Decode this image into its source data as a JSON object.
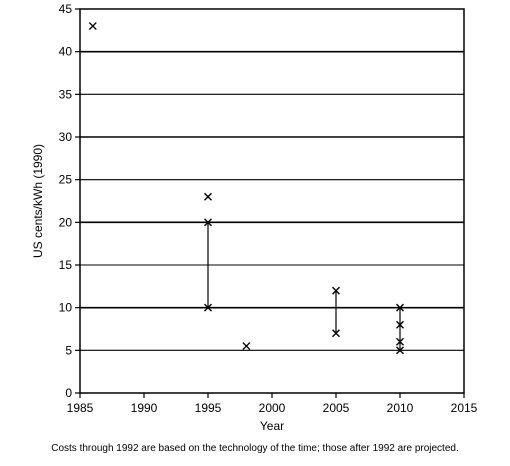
{
  "chart_data": {
    "type": "scatter",
    "xlabel": "Year",
    "ylabel": "US cents/kWh (1990)",
    "xlim": [
      1985,
      2015
    ],
    "ylim": [
      0,
      45
    ],
    "xticks": [
      1985,
      1990,
      1995,
      2000,
      2005,
      2010,
      2015
    ],
    "yticks": [
      0,
      5,
      10,
      15,
      20,
      25,
      30,
      35,
      40,
      45
    ],
    "grid": "horizontal",
    "points": [
      {
        "x": 1986,
        "y": 43
      },
      {
        "x": 1995,
        "y": 23
      },
      {
        "x": 1995,
        "y": 20
      },
      {
        "x": 1995,
        "y": 10
      },
      {
        "x": 1998,
        "y": 5.5
      },
      {
        "x": 2005,
        "y": 12
      },
      {
        "x": 2005,
        "y": 7
      },
      {
        "x": 2010,
        "y": 10
      },
      {
        "x": 2010,
        "y": 8
      },
      {
        "x": 2010,
        "y": 6
      },
      {
        "x": 2010,
        "y": 5
      }
    ],
    "ranges": [
      {
        "x": 1995,
        "low": 10,
        "high": 20
      },
      {
        "x": 2005,
        "low": 7,
        "high": 12
      },
      {
        "x": 2010,
        "low": 5,
        "high": 10
      }
    ]
  },
  "caption": "Costs through 1992 are based on the technology of the time; those after 1992 are projected."
}
